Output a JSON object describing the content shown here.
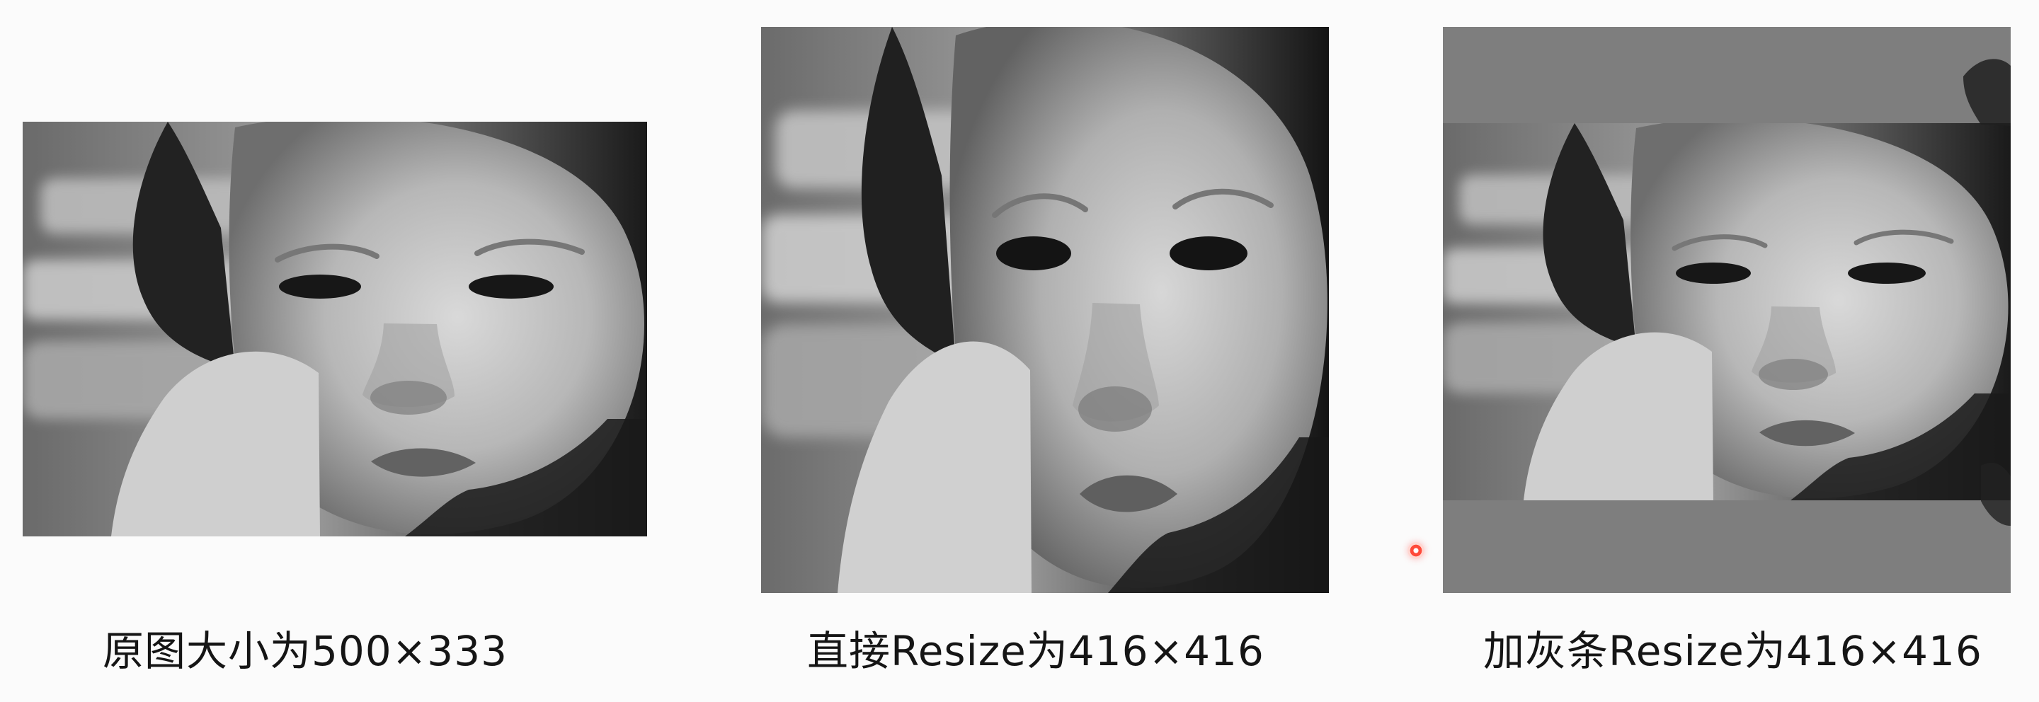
{
  "captions": {
    "original": "原图大小为500×333",
    "direct_resize": "直接Resize为416×416",
    "gray_bar_resize": "加灰条Resize为416×416"
  },
  "images": {
    "original": {
      "subject": "black-and-white baby portrait"
    },
    "direct_resize": {
      "subject": "stretched black-and-white baby portrait"
    },
    "gray_bar_resize": {
      "subject": "letterboxed black-and-white baby portrait with gray bars"
    }
  },
  "overlay": {
    "cursor": "recording-cursor-dot"
  }
}
